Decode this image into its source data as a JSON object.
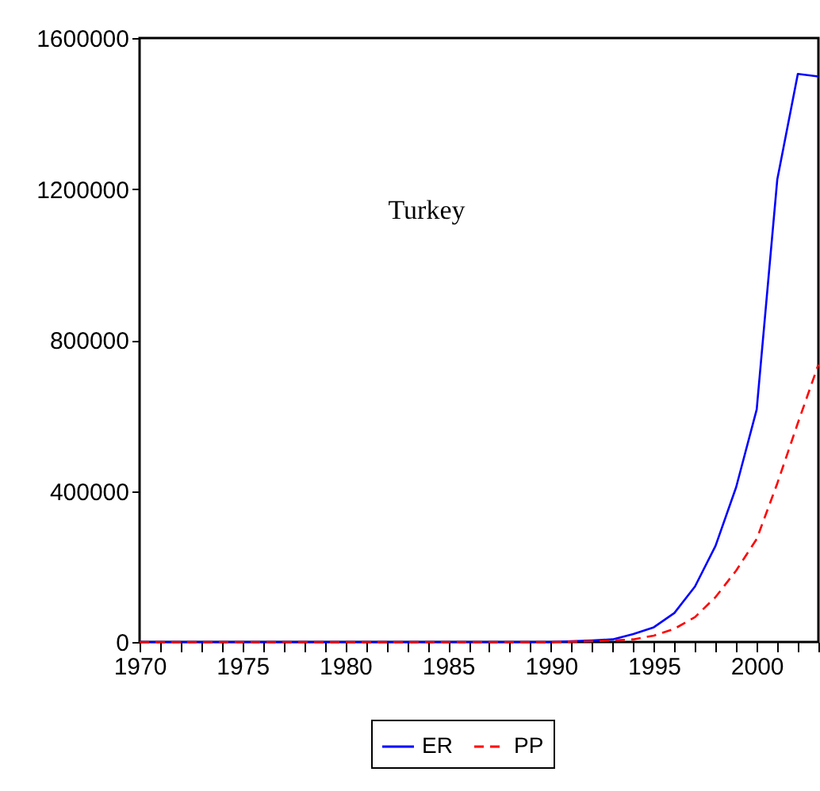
{
  "chart_data": {
    "type": "line",
    "annotations": [
      "Turkey"
    ],
    "x": [
      1970,
      1971,
      1972,
      1973,
      1974,
      1975,
      1976,
      1977,
      1978,
      1979,
      1980,
      1981,
      1982,
      1983,
      1984,
      1985,
      1986,
      1987,
      1988,
      1989,
      1990,
      1991,
      1992,
      1993,
      1994,
      1995,
      1996,
      1997,
      1998,
      1999,
      2000,
      2001,
      2002,
      2003
    ],
    "series": [
      {
        "name": "ER",
        "color": "#0000ff",
        "line_style": "solid",
        "values": [
          0,
          0,
          0,
          0,
          0,
          0,
          0,
          0,
          0,
          0,
          0,
          0,
          0,
          0,
          0,
          0,
          0,
          0,
          0,
          0,
          0,
          2000,
          4000,
          7000,
          21000,
          39000,
          77000,
          147000,
          255000,
          410000,
          616000,
          1225000,
          1505000,
          1498000
        ]
      },
      {
        "name": "PP",
        "color": "#ff0000",
        "line_style": "dashed",
        "values": [
          0,
          0,
          0,
          0,
          0,
          0,
          0,
          0,
          0,
          0,
          0,
          0,
          0,
          0,
          0,
          0,
          0,
          0,
          0,
          0,
          0,
          1000,
          2000,
          4000,
          7000,
          17000,
          35000,
          66000,
          119000,
          189000,
          273000,
          420000,
          580000,
          735000
        ]
      }
    ],
    "xlim": [
      1970,
      2003
    ],
    "xticks": [
      1970,
      {
        "value": 1971,
        "label": null
      },
      {
        "value": 1972,
        "label": null
      },
      {
        "value": 1973,
        "label": null
      },
      {
        "value": 1974,
        "label": null
      },
      1975,
      {
        "value": 1976,
        "label": null
      },
      {
        "value": 1977,
        "label": null
      },
      {
        "value": 1978,
        "label": null
      },
      {
        "value": 1979,
        "label": null
      },
      1980,
      {
        "value": 1981,
        "label": null
      },
      {
        "value": 1982,
        "label": null
      },
      {
        "value": 1983,
        "label": null
      },
      {
        "value": 1984,
        "label": null
      },
      1985,
      {
        "value": 1986,
        "label": null
      },
      {
        "value": 1987,
        "label": null
      },
      {
        "value": 1988,
        "label": null
      },
      {
        "value": 1989,
        "label": null
      },
      1990,
      {
        "value": 1991,
        "label": null
      },
      {
        "value": 1992,
        "label": null
      },
      {
        "value": 1993,
        "label": null
      },
      {
        "value": 1994,
        "label": null
      },
      1995,
      {
        "value": 1996,
        "label": null
      },
      {
        "value": 1997,
        "label": null
      },
      {
        "value": 1998,
        "label": null
      },
      {
        "value": 1999,
        "label": null
      },
      2000,
      {
        "value": 2001,
        "label": null
      },
      {
        "value": 2002,
        "label": null
      },
      {
        "value": 2003,
        "label": null
      }
    ],
    "ylim": [
      0,
      1600000
    ],
    "yticks": [
      0,
      400000,
      800000,
      1200000,
      1600000
    ],
    "grid": false,
    "legend": "bottom",
    "marker": "none"
  }
}
